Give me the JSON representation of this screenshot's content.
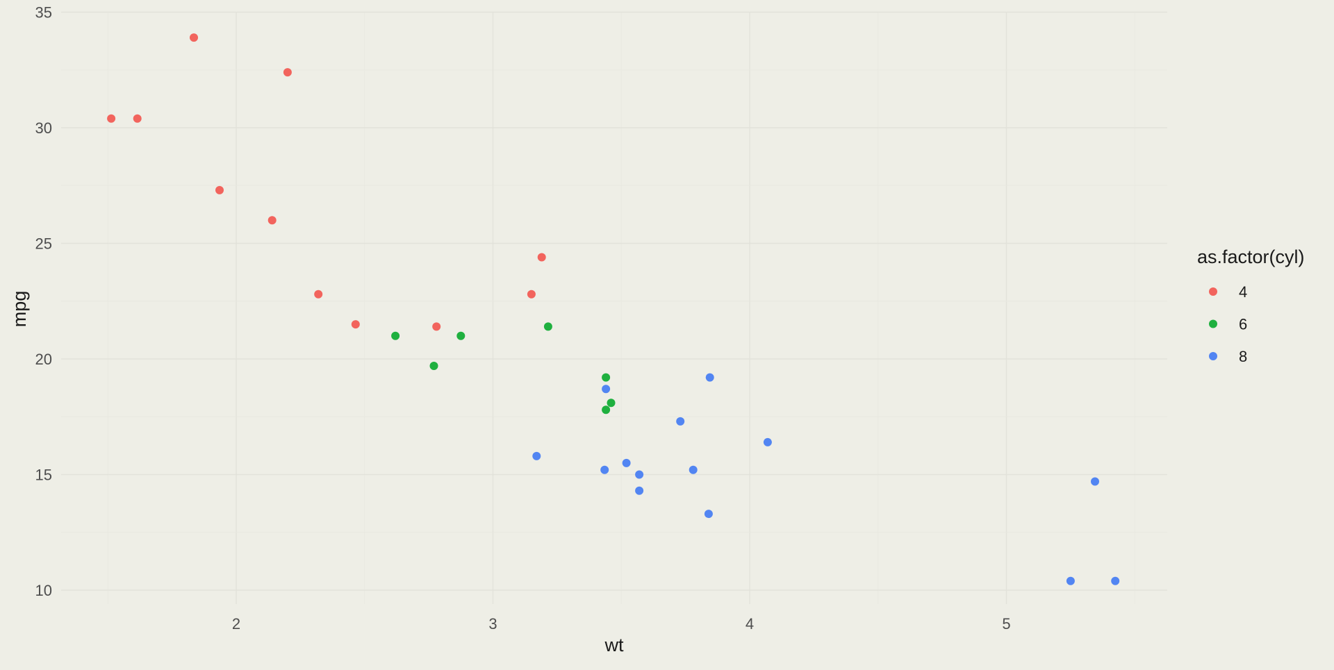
{
  "chart_data": {
    "type": "scatter",
    "xlabel": "wt",
    "ylabel": "mpg",
    "xlim": [
      1.35,
      5.6
    ],
    "ylim": [
      9.4,
      35
    ],
    "x_ticks": [
      2,
      3,
      4,
      5
    ],
    "y_ticks": [
      10,
      15,
      20,
      25,
      30,
      35
    ],
    "grid": true,
    "legend": {
      "title": "as.factor(cyl)",
      "placement": "right"
    },
    "series": [
      {
        "name": "4",
        "color": "#f2645d",
        "points": [
          {
            "x": 1.513,
            "y": 30.4
          },
          {
            "x": 1.615,
            "y": 30.4
          },
          {
            "x": 1.835,
            "y": 33.9
          },
          {
            "x": 1.935,
            "y": 27.3
          },
          {
            "x": 2.14,
            "y": 26.0
          },
          {
            "x": 2.2,
            "y": 32.4
          },
          {
            "x": 2.32,
            "y": 22.8
          },
          {
            "x": 2.465,
            "y": 21.5
          },
          {
            "x": 2.78,
            "y": 21.4
          },
          {
            "x": 3.15,
            "y": 22.8
          },
          {
            "x": 3.19,
            "y": 24.4
          }
        ]
      },
      {
        "name": "6",
        "color": "#1fb03f",
        "points": [
          {
            "x": 2.62,
            "y": 21.0
          },
          {
            "x": 2.77,
            "y": 19.7
          },
          {
            "x": 2.875,
            "y": 21.0
          },
          {
            "x": 3.215,
            "y": 21.4
          },
          {
            "x": 3.44,
            "y": 17.8
          },
          {
            "x": 3.44,
            "y": 19.2
          },
          {
            "x": 3.46,
            "y": 18.1
          }
        ]
      },
      {
        "name": "8",
        "color": "#5285f2",
        "points": [
          {
            "x": 3.17,
            "y": 15.8
          },
          {
            "x": 3.435,
            "y": 15.2
          },
          {
            "x": 3.44,
            "y": 18.7
          },
          {
            "x": 3.52,
            "y": 15.5
          },
          {
            "x": 3.57,
            "y": 14.3
          },
          {
            "x": 3.57,
            "y": 15.0
          },
          {
            "x": 3.73,
            "y": 17.3
          },
          {
            "x": 3.78,
            "y": 15.2
          },
          {
            "x": 3.84,
            "y": 13.3
          },
          {
            "x": 3.845,
            "y": 19.2
          },
          {
            "x": 4.07,
            "y": 16.4
          },
          {
            "x": 5.25,
            "y": 10.4
          },
          {
            "x": 5.345,
            "y": 14.7
          },
          {
            "x": 5.424,
            "y": 10.4
          }
        ]
      }
    ]
  }
}
